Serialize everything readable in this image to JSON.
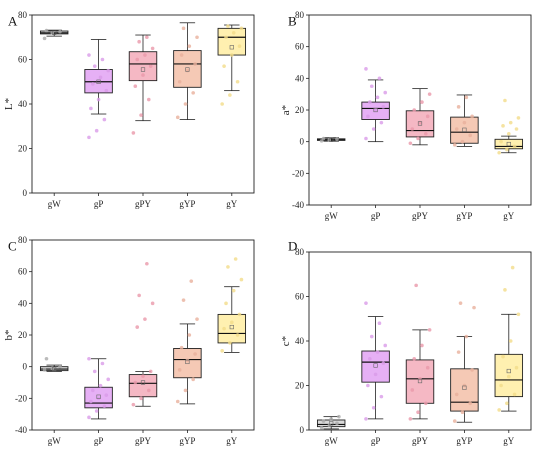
{
  "chart_data": [
    {
      "type": "box",
      "panel_label": "A",
      "ylabel": "L*",
      "ylim": [
        0,
        80
      ],
      "yticks": [
        0,
        20,
        40,
        60,
        80
      ],
      "categories": [
        "gW",
        "gP",
        "gPY",
        "gYP",
        "gY"
      ],
      "colors": [
        "#d9d9d9",
        "#e6b0f5",
        "#f5b8c4",
        "#f5c9b5",
        "#fff0b0"
      ],
      "point_colors": [
        "#aaaaaa",
        "#d99be8",
        "#ea98aa",
        "#e8b09c",
        "#f2dc8a"
      ],
      "boxes": [
        {
          "min": 70.5,
          "q1": 71.5,
          "median": 72,
          "q3": 72.8,
          "max": 73.2,
          "mean": 72
        },
        {
          "min": 35.5,
          "q1": 45,
          "median": 50,
          "q3": 55.5,
          "max": 69,
          "mean": 50
        },
        {
          "min": 32.5,
          "q1": 50.5,
          "median": 58,
          "q3": 63.5,
          "max": 71,
          "mean": 55.5
        },
        {
          "min": 33,
          "q1": 47.5,
          "median": 58,
          "q3": 64,
          "max": 76.5,
          "mean": 55.5
        },
        {
          "min": 46,
          "q1": 62,
          "median": 70,
          "q3": 74,
          "max": 75.5,
          "mean": 65.5
        }
      ],
      "points": [
        [
          69.5,
          72,
          72.5,
          73
        ],
        [
          25,
          28,
          33,
          38,
          42,
          46,
          49,
          52,
          55,
          57,
          60,
          62
        ],
        [
          27,
          35,
          42,
          48,
          53,
          57,
          60,
          62,
          65,
          68,
          70
        ],
        [
          34,
          40,
          45,
          50,
          55,
          58,
          62,
          66,
          70,
          74
        ],
        [
          40,
          44,
          50,
          57,
          62,
          66,
          70,
          72,
          74,
          75
        ]
      ]
    },
    {
      "type": "box",
      "panel_label": "B",
      "ylabel": "a*",
      "ylim": [
        -40,
        80
      ],
      "yticks": [
        -40,
        -20,
        0,
        20,
        40,
        60,
        80
      ],
      "categories": [
        "gW",
        "gP",
        "gPY",
        "gYP",
        "gY"
      ],
      "colors": [
        "#d9d9d9",
        "#e6b0f5",
        "#f5b8c4",
        "#f5c9b5",
        "#fff0b0"
      ],
      "point_colors": [
        "#aaaaaa",
        "#d99be8",
        "#ea98aa",
        "#e8b09c",
        "#f2dc8a"
      ],
      "boxes": [
        {
          "min": 0.3,
          "q1": 0.8,
          "median": 1.2,
          "q3": 1.8,
          "max": 2.5,
          "mean": 1.2
        },
        {
          "min": 0,
          "q1": 14,
          "median": 21,
          "q3": 25,
          "max": 39,
          "mean": 20
        },
        {
          "min": -2,
          "q1": 3,
          "median": 7,
          "q3": 19.5,
          "max": 33.5,
          "mean": 11.5
        },
        {
          "min": -3,
          "q1": -1,
          "median": 6,
          "q3": 15.5,
          "max": 29.5,
          "mean": 7.5
        },
        {
          "min": -7,
          "q1": -4.5,
          "median": -3,
          "q3": 1.5,
          "max": 3.5,
          "mean": -1.5
        }
      ],
      "points": [
        [
          0.5,
          1,
          1.5,
          2
        ],
        [
          2,
          8,
          12,
          16,
          20,
          22,
          25,
          28,
          31,
          35,
          40,
          46
        ],
        [
          -1,
          2,
          5,
          8,
          12,
          16,
          20,
          25,
          30
        ],
        [
          -2,
          0,
          4,
          8,
          12,
          16,
          22,
          28
        ],
        [
          -7,
          -5,
          -3,
          0,
          5,
          8,
          10,
          12,
          15,
          26
        ]
      ]
    },
    {
      "type": "box",
      "panel_label": "C",
      "ylabel": "b*",
      "ylim": [
        -40,
        80
      ],
      "yticks": [
        -40,
        -20,
        0,
        20,
        40,
        60,
        80
      ],
      "categories": [
        "gW",
        "gP",
        "gPY",
        "gYP",
        "gY"
      ],
      "colors": [
        "#d9d9d9",
        "#e6b0f5",
        "#f5b8c4",
        "#f5c9b5",
        "#fff0b0"
      ],
      "point_colors": [
        "#aaaaaa",
        "#d99be8",
        "#ea98aa",
        "#e8b09c",
        "#f2dc8a"
      ],
      "boxes": [
        {
          "min": -3,
          "q1": -2.5,
          "median": -1.5,
          "q3": 0,
          "max": 1,
          "mean": -1.5
        },
        {
          "min": -33,
          "q1": -26,
          "median": -23,
          "q3": -13,
          "max": 5,
          "mean": -19
        },
        {
          "min": -25,
          "q1": -19,
          "median": -10.5,
          "q3": -5,
          "max": -3,
          "mean": -10
        },
        {
          "min": -23.5,
          "q1": -7,
          "median": 4.5,
          "q3": 11.5,
          "max": 27,
          "mean": 3
        },
        {
          "min": 9,
          "q1": 15,
          "median": 21,
          "q3": 33,
          "max": 50.5,
          "mean": 25
        }
      ],
      "points": [
        [
          -2,
          -1,
          0,
          5
        ],
        [
          -32,
          -28,
          -25,
          -22,
          -20,
          -18,
          -15,
          -12,
          -8,
          -3,
          2,
          5
        ],
        [
          -24,
          -20,
          -15,
          -10,
          -6,
          -3,
          25,
          30,
          40,
          45,
          65
        ],
        [
          -22,
          -15,
          -8,
          -2,
          4,
          8,
          12,
          20,
          30,
          42,
          54
        ],
        [
          10,
          15,
          20,
          24,
          28,
          33,
          40,
          48,
          55,
          63,
          68
        ]
      ]
    },
    {
      "type": "box",
      "panel_label": "D",
      "ylabel": "c*",
      "ylim": [
        0,
        80
      ],
      "yticks": [
        0,
        20,
        40,
        60,
        80
      ],
      "categories": [
        "gW",
        "gP",
        "gPY",
        "gYP",
        "gY"
      ],
      "colors": [
        "#d9d9d9",
        "#e6b0f5",
        "#f5b8c4",
        "#f5c9b5",
        "#fff0b0"
      ],
      "point_colors": [
        "#aaaaaa",
        "#d99be8",
        "#ea98aa",
        "#e8b09c",
        "#f2dc8a"
      ],
      "boxes": [
        {
          "min": 0.5,
          "q1": 1.5,
          "median": 2.5,
          "q3": 4.5,
          "max": 6,
          "mean": 3
        },
        {
          "min": 5,
          "q1": 21.5,
          "median": 30.5,
          "q3": 35.5,
          "max": 51,
          "mean": 29
        },
        {
          "min": 5,
          "q1": 12,
          "median": 23,
          "q3": 31.5,
          "max": 45,
          "mean": 22
        },
        {
          "min": 3.5,
          "q1": 8.5,
          "median": 12.5,
          "q3": 27.5,
          "max": 42,
          "mean": 19
        },
        {
          "min": 8.5,
          "q1": 15,
          "median": 22.5,
          "q3": 34,
          "max": 52,
          "mean": 26.5
        }
      ],
      "points": [
        [
          1,
          2,
          3,
          4,
          5,
          6
        ],
        [
          5,
          10,
          15,
          20,
          25,
          30,
          32,
          35,
          38,
          42,
          48,
          57
        ],
        [
          5,
          8,
          12,
          18,
          23,
          28,
          32,
          38,
          45,
          65
        ],
        [
          4,
          8,
          12,
          16,
          20,
          27,
          35,
          42,
          55,
          57
        ],
        [
          9,
          12,
          16,
          20,
          24,
          28,
          33,
          40,
          52,
          63,
          73
        ]
      ]
    }
  ]
}
